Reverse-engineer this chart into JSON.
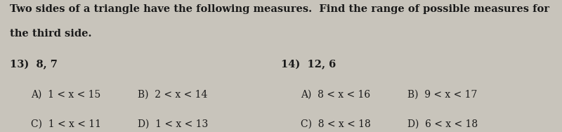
{
  "background_color": "#c8c4bb",
  "instruction_line1": "Two sides of a triangle have the following measures.  Find the range of possible measures for",
  "instruction_line2": "the third side.",
  "q13_label": "13)  8, 7",
  "q14_label": "14)  12, 6",
  "q13_options": [
    [
      "A)  1 < x < 15",
      "B)  2 < x < 14"
    ],
    [
      "C)  1 < x < 11",
      "D)  1 < x < 13"
    ]
  ],
  "q14_options": [
    [
      "A)  8 < x < 16",
      "B)  9 < x < 17"
    ],
    [
      "C)  8 < x < 18",
      "D)  6 < x < 18"
    ]
  ],
  "font_size_instruction": 10.5,
  "font_size_question": 10.5,
  "font_size_options": 10.0,
  "text_color": "#1a1a1a",
  "font_family": "DejaVu Serif",
  "col_q13": 0.018,
  "col_q14": 0.5,
  "col_A13": 0.055,
  "col_B13": 0.245,
  "col_A14": 0.535,
  "col_B14": 0.725,
  "row_instr1": 0.97,
  "row_instr2": 0.78,
  "row_qnum": 0.55,
  "row_opt1": 0.32,
  "row_opt2": 0.1
}
